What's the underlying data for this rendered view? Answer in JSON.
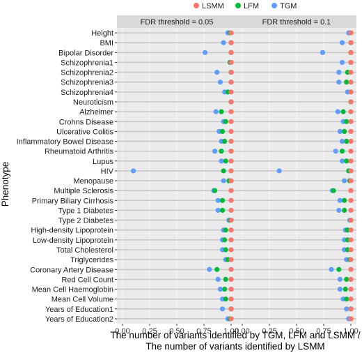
{
  "chart_data": {
    "type": "scatter",
    "ylabel": "Phenotype",
    "xlabel_lines": [
      "The number of variants identified by TGM, LFM and LSMM /",
      "The number of variants identified by LSMM"
    ],
    "xlim": [
      0,
      1
    ],
    "xticks": [
      "0.00",
      "0.25",
      "0.50",
      "0.75",
      "1.00"
    ],
    "grid": true,
    "legend_position": "top-right",
    "legend": [
      {
        "name": "LSMM",
        "color": "#f8766d"
      },
      {
        "name": "LFM",
        "color": "#00ba38"
      },
      {
        "name": "TGM",
        "color": "#619cff"
      }
    ],
    "categories": [
      "Height",
      "BMI",
      "Bipolar Disorder",
      "Schizophrenia1",
      "Schizophrenia2",
      "Schizophrenia3",
      "Schizophrenia4",
      "Neuroticism",
      "Alzheimer",
      "Crohns Disease",
      "Ulcerative Colitis",
      "Inflammatory Bowel Disease",
      "Rheumatoid Arthritis",
      "Lupus",
      "HIV",
      "Menopause",
      "Multiple Sclerosis",
      "Primary Biliary Cirrhosis",
      "Type 1 Diabetes",
      "Type 2 Diabetes",
      "High-density Lipoprotein",
      "Low-density Lipoprotein",
      "Total Cholesterol",
      "Triglycerides",
      "Coronary Artery Disease",
      "Red Cell Count",
      "Mean Cell Haemoglobin",
      "Mean Cell Volume",
      "Years of Education1",
      "Years of Education2"
    ],
    "panels": [
      {
        "title": "FDR threshold = 0.05",
        "series": [
          {
            "name": "LSMM",
            "values": [
              1,
              1,
              1,
              1,
              1,
              1,
              1,
              1,
              1,
              1,
              1,
              1,
              1,
              1,
              1,
              1,
              1,
              1,
              1,
              1,
              1,
              1,
              1,
              1,
              1,
              1,
              1,
              1,
              1,
              1
            ]
          },
          {
            "name": "LFM",
            "values": [
              0.99,
              1.0,
              1.0,
              0.99,
              1.0,
              1.0,
              0.97,
              1.0,
              0.91,
              0.95,
              0.92,
              0.94,
              0.91,
              0.95,
              0.93,
              0.98,
              0.85,
              0.92,
              0.92,
              0.99,
              0.95,
              0.94,
              0.95,
              0.97,
              0.87,
              0.95,
              0.94,
              0.95,
              1.0,
              0.99
            ]
          },
          {
            "name": "TGM",
            "values": [
              0.97,
              0.93,
              0.76,
              0.99,
              0.87,
              0.9,
              0.94,
              1.0,
              0.86,
              0.93,
              0.89,
              0.91,
              0.85,
              0.91,
              0.1,
              0.93,
              0.84,
              0.88,
              0.88,
              0.98,
              0.93,
              0.92,
              0.92,
              0.95,
              0.8,
              0.88,
              0.9,
              0.92,
              0.92,
              0.97
            ]
          }
        ]
      },
      {
        "title": "FDR threshold = 0.1",
        "series": [
          {
            "name": "LSMM",
            "values": [
              1,
              1,
              1,
              1,
              1,
              1,
              1,
              1,
              1,
              1,
              1,
              1,
              1,
              1,
              1,
              1,
              1,
              1,
              1,
              1,
              1,
              1,
              1,
              1,
              1,
              1,
              1,
              1,
              1,
              1
            ]
          },
          {
            "name": "LFM",
            "values": [
              1.0,
              1.0,
              1.0,
              1.0,
              0.97,
              0.96,
              1.0,
              1.0,
              0.93,
              0.96,
              0.94,
              0.96,
              0.92,
              0.96,
              0.98,
              0.99,
              0.84,
              0.94,
              0.94,
              1.0,
              0.97,
              0.97,
              0.97,
              0.99,
              0.89,
              0.96,
              0.95,
              0.96,
              1.0,
              1.0
            ]
          },
          {
            "name": "TGM",
            "values": [
              0.98,
              0.92,
              0.74,
              0.92,
              0.89,
              0.89,
              0.97,
              1.0,
              0.88,
              0.93,
              0.9,
              0.92,
              0.86,
              0.92,
              0.34,
              0.94,
              0.83,
              0.9,
              0.89,
              0.99,
              0.95,
              0.94,
              0.94,
              0.96,
              0.82,
              0.9,
              0.9,
              0.93,
              0.96,
              0.98
            ]
          }
        ]
      }
    ]
  }
}
